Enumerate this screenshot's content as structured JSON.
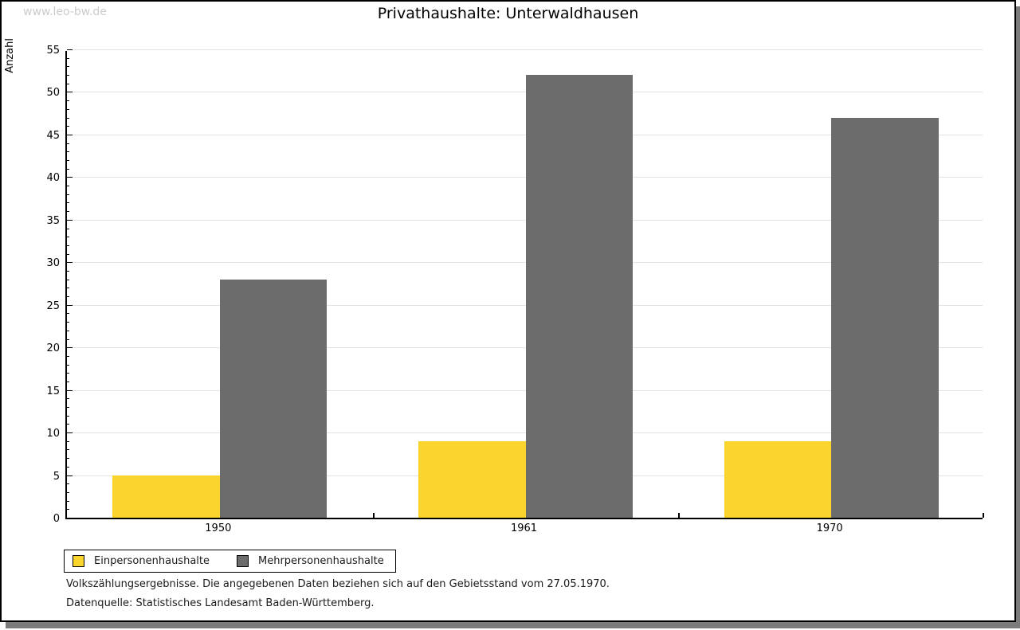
{
  "watermark": "www.leo-bw.de",
  "header": {
    "title": "Privathaushalte: Unterwaldhausen"
  },
  "chart_data": {
    "type": "bar",
    "title": "Privathaushalte: Unterwaldhausen",
    "ylabel": "Anzahl",
    "xlabel": "",
    "categories": [
      "1950",
      "1961",
      "1970"
    ],
    "series": [
      {
        "name": "Einpersonenhaushalte",
        "color": "#FCD42E",
        "values": [
          5,
          9,
          9
        ]
      },
      {
        "name": "Mehrpersonenhaushalte",
        "color": "#6C6C6C",
        "values": [
          28,
          52,
          47
        ]
      }
    ],
    "ylim": [
      0,
      55
    ],
    "ytick_step": 5,
    "yminor_step": 1,
    "grid": "horizontal-major",
    "legend_position": "bottom-left"
  },
  "footnotes": {
    "line1": "Volkszählungsergebnisse. Die angegebenen Daten beziehen sich auf den Gebietsstand vom 27.05.1970.",
    "line2": "Datenquelle: Statistisches Landesamt Baden-Württemberg."
  },
  "colors": {
    "series1": "#FCD42E",
    "series2": "#6C6C6C",
    "grid": "#E3E3E3",
    "axis": "#000000",
    "watermark": "#CBCBCB",
    "shadow": "#7C7C7C",
    "background": "#FFFFFF"
  }
}
